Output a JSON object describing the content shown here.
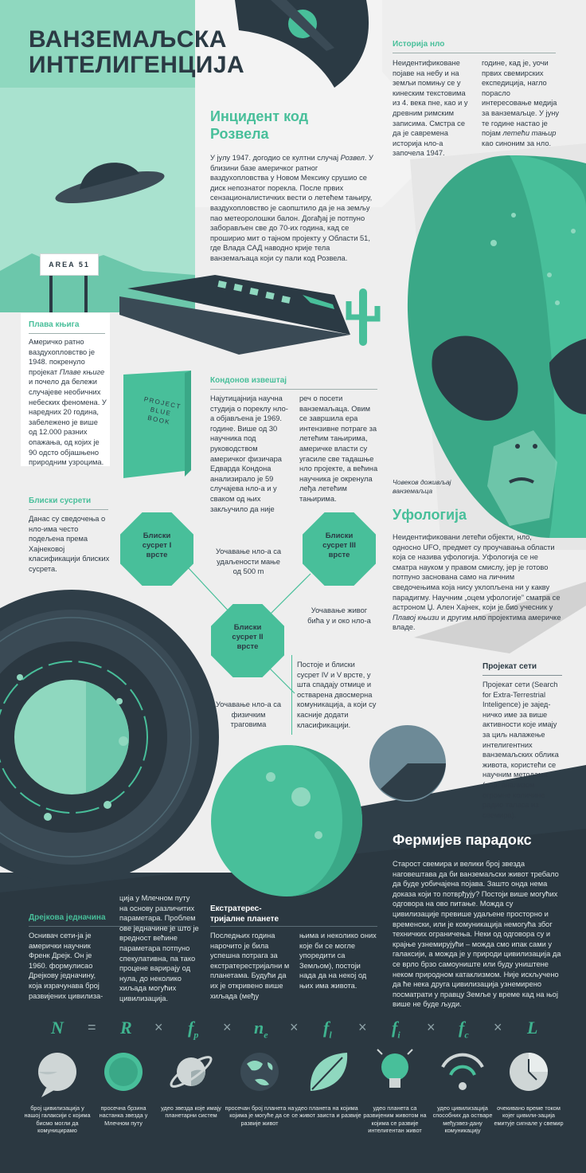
{
  "title": "ВАНЗЕМАЉСКА\nИНТЕЛИГЕНЦИЈА",
  "history": {
    "heading": "Историја нло",
    "col1": "Неидентификоване појаве на небу и на земљи помињу се у кинеским текстовима из 4. века пне, као и у древним римским записима. Смстра се да је савремена историја нло-а започела 1947.",
    "col2_a": "године, кад је, уочи првих свемирских експедиција, нагло порасло интересовање медија за ванземаљце. У јуну те године настао је појам ",
    "col2_em": "летећи тањир",
    "col2_b": " као синоним за нло."
  },
  "roswell": {
    "heading": "Инцидент код Розвела",
    "t1": "У јулу 1947. догодио се култни случај ",
    "em": "Розвел",
    "t2": ". У близини базе америчког ратног ваздухопловства у Новом Мексику срушио се диск непознатог порекла. После првих сензационалистичких вести о летећем тањиру, ваздухопловство је саопштило да је на земљу пао метеоролошки балон. Догађај је потпуно заборављен све до 70-их година, кад се проширио мит о тајном пројекту у Области 51, где Влада САД наводно крије тела ванземаљаца који су пали код Розвела."
  },
  "area_sign": "AREA 51",
  "bluebook": {
    "heading": "Плава књига",
    "t1": "Америчко ратно ваздухопловство је 1948. покренуло пројекат ",
    "em": "Плаве књиге",
    "t2": " и почело да бележи случајеве необичних небеских феномена. У наредних 20 година, забележено је више од 12.000 разних опажања, од којих је 90 одсто објашњено природним узроцима.",
    "book_text": [
      "PROJECT",
      "BLUE",
      "BOOK"
    ]
  },
  "condon": {
    "heading": "Кондонов извештај",
    "col1": "Најутицајнија научна студија о пореклу нло-а објављена је 1969. године. Више од 30 научника под руководством америчког физичара Едварда Кондона анализирало је 59 случајева нло-а и у сваком од њих закључило да није",
    "col2": "реч о посети ванземаљаца. Овим се завршила ера интензивне потраге за летећим тањирима, америчке власти су угасиле све тадашње нло пројекте, а већина научника је окренула леђа летећим тањирима."
  },
  "alien_caption": "Човеков доживљај ванземаљца",
  "close": {
    "heading": "Блиски сусрети",
    "text": "Данас су сведочења о нло-има често подељена према Хајнековој класификацији блиских сусрета.",
    "oct1": [
      "Блиски",
      "сусрет I",
      "врсте"
    ],
    "oct2": [
      "Блиски",
      "сусрет II",
      "врсте"
    ],
    "oct3": [
      "Блиски",
      "сусрет III",
      "врсте"
    ],
    "d1": "Уочавање нло-а са удаљености мање од 500 m",
    "d2": "Уочавање нло-а са физичким траговима",
    "d3": "Уочавање живог бића у и око нло-а",
    "d4": "Постоје и блиски сусрет IV и V врсте, у шта спадају отмице и остварена двосмерна комуникација, а који су касније додати класификацији."
  },
  "ufology": {
    "heading": "Уфологија",
    "t1": "Неидентификовани летећи објекти, нло, односно UFO, предмет су проучавања области која се назива уфологија. Уфологија се не сматра науком у правом смислу, јер је готово потпуно заснована само на личним сведочењима која нису уклопљена ни у какву парадигму. Научним „оцем уфологије” сматра се астроном Џ. Ален Хајнек, који је био учесник у ",
    "em": "Плавој књизи",
    "t2": " и другим нло пројектима америчке владе."
  },
  "seti": {
    "heading": "Пројекат сети",
    "text": "Пројекат сети (Search for Extra-Terrestrial Inteligence) је зајед-ничко име за више активности које имају за циљ налажење интелигентних ванземаљских облика живота, користећи се научним методама (нпр. анализом огромне количине радио таласа из свемира)."
  },
  "fermi": {
    "heading": "Фермијев парадокс",
    "text": "Старост свемира и велики број звезда наговештава да би ванземаљски живот требало да буде уобичајена појава. Зашто онда нема доказа који то потврђују? Постоји више могућих одговора на ово питање. Можда су цивилизације превише удаљене просторно и временски, или је комуникација немогућа због техничких ограничења. Неки од одговора су и крајње узнемирујући – можда смо ипак сами у галаксији, а можда је у природи цивилизација да се врло брзо самоуниште или буду уништене неком природном катаклизмом. Није искључено да ће нека друга цивилизација узнемирено посматрати у правцу Земље у време кад на њој више не буде људи."
  },
  "drake": {
    "heading": "Дрејкова једначина",
    "col1": "Оснивач сети-ја је амерички научник Френк Дрејк. Он је 1960. формулисао Дрејкову једначину, која израчунава број развијених цивилиза-",
    "col2": "ција у Млечном путу на основу различитих параметара. Проблем ове једначине је што је вредност већине параметара потпуно спекулативна, па тако процене варирају од нула, до неколико хиљада могућих цивилизација."
  },
  "exo": {
    "heading": "Екстратерес-\nтријалне планете",
    "col1": "Последњих година нарочито је била успешна потрага за екстратерестријални м планетама. Будући да их је откривено више хиљада (међу",
    "col2": "њима и неколико оних које би се могле упоредити са Земљом), постоји нада да на некој од њих има живота."
  },
  "equation": {
    "symbols": [
      "N",
      "R",
      "f",
      "n",
      "f",
      "f",
      "f",
      "L"
    ],
    "subs": [
      "",
      "",
      "p",
      "e",
      "l",
      "i",
      "c",
      ""
    ],
    "ops": [
      "=",
      "×",
      "×",
      "×",
      "×",
      "×",
      "×",
      "×"
    ],
    "labels": [
      "број цивилизација у нашој галаксији с којима бисмо могли да комуницирамо",
      "просечна брзина настанка звезда у Млечном путу",
      "удео звезда које имају планетарни систем",
      "просечан број планета на којима је могуће да се развије живот",
      "удео планета на којима се живот заиста и развије",
      "удео планета са развијеним животом на којима се развије интелигентан живот",
      "удео цивилизација способних да остваре међузвез-дану комуникацију",
      "очекивано време током којег цивили-зација емитује сигнале у свемир"
    ],
    "icons": [
      "speech-bubble-icon",
      "star-icon",
      "saturn-planet-icon",
      "earth-globe-icon",
      "leaf-icon",
      "lightbulb-icon",
      "radio-signal-icon",
      "clock-icon"
    ]
  },
  "colors": {
    "accent": "#48bf9a",
    "dark": "#2b3a44",
    "mint": "#8fd8bf",
    "light": "#eeeeee"
  }
}
